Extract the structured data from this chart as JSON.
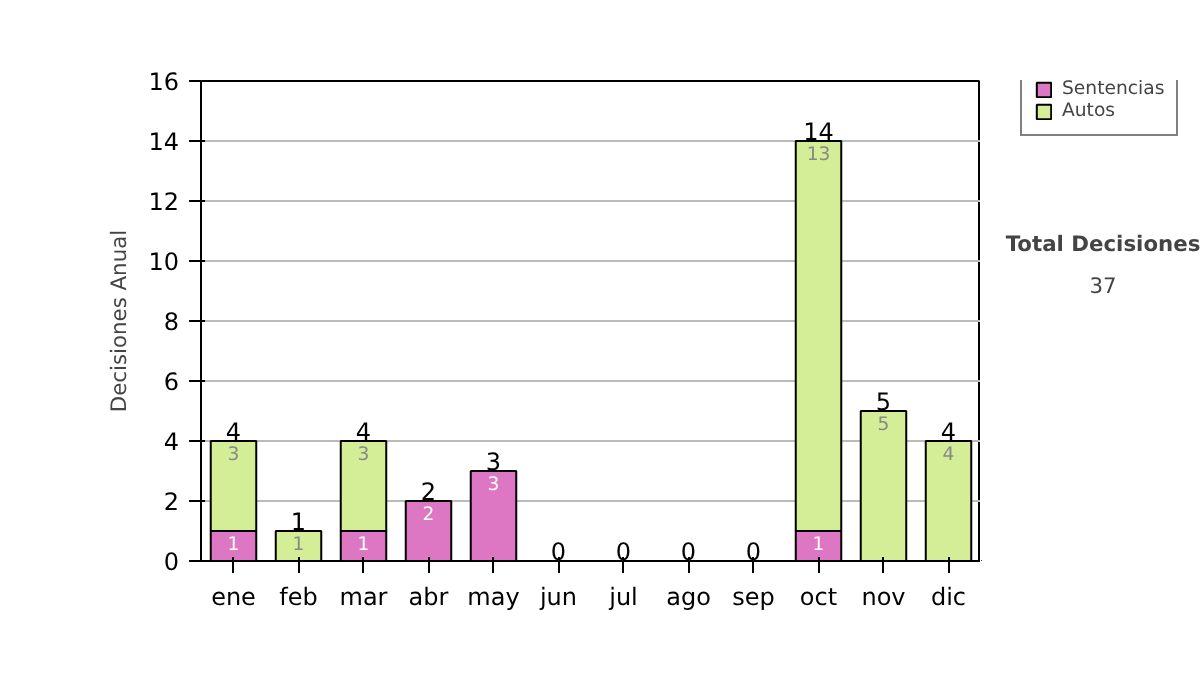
{
  "chart_data": {
    "type": "bar",
    "stacked": true,
    "ylabel": "Decisiones Anual",
    "categories": [
      "ene",
      "feb",
      "mar",
      "abr",
      "may",
      "jun",
      "jul",
      "ago",
      "sep",
      "oct",
      "nov",
      "dic"
    ],
    "series": [
      {
        "name": "Sentencias",
        "color": "#dd77c4",
        "values": [
          1,
          0,
          1,
          2,
          3,
          0,
          0,
          0,
          0,
          1,
          0,
          0
        ],
        "value_labels": [
          "1",
          null,
          "1",
          "2",
          "3",
          null,
          null,
          null,
          null,
          "1",
          null,
          null
        ]
      },
      {
        "name": "Autos",
        "color": "#d4ee98",
        "values": [
          3,
          1,
          3,
          0,
          0,
          0,
          0,
          0,
          0,
          13,
          5,
          4
        ],
        "value_labels": [
          "3",
          "1",
          "3",
          null,
          null,
          null,
          null,
          null,
          null,
          "13",
          "5",
          "4"
        ]
      }
    ],
    "totals": [
      "4",
      "1",
      "4",
      "2",
      "3",
      "0",
      "0",
      "0",
      "0",
      "14",
      "5",
      "4"
    ],
    "ylim": [
      0,
      16
    ],
    "yticks": [
      0,
      2,
      4,
      6,
      8,
      10,
      12,
      14,
      16
    ],
    "grid": "y",
    "legend": "right",
    "annotations": [
      "Total Decisiones",
      "37"
    ]
  }
}
